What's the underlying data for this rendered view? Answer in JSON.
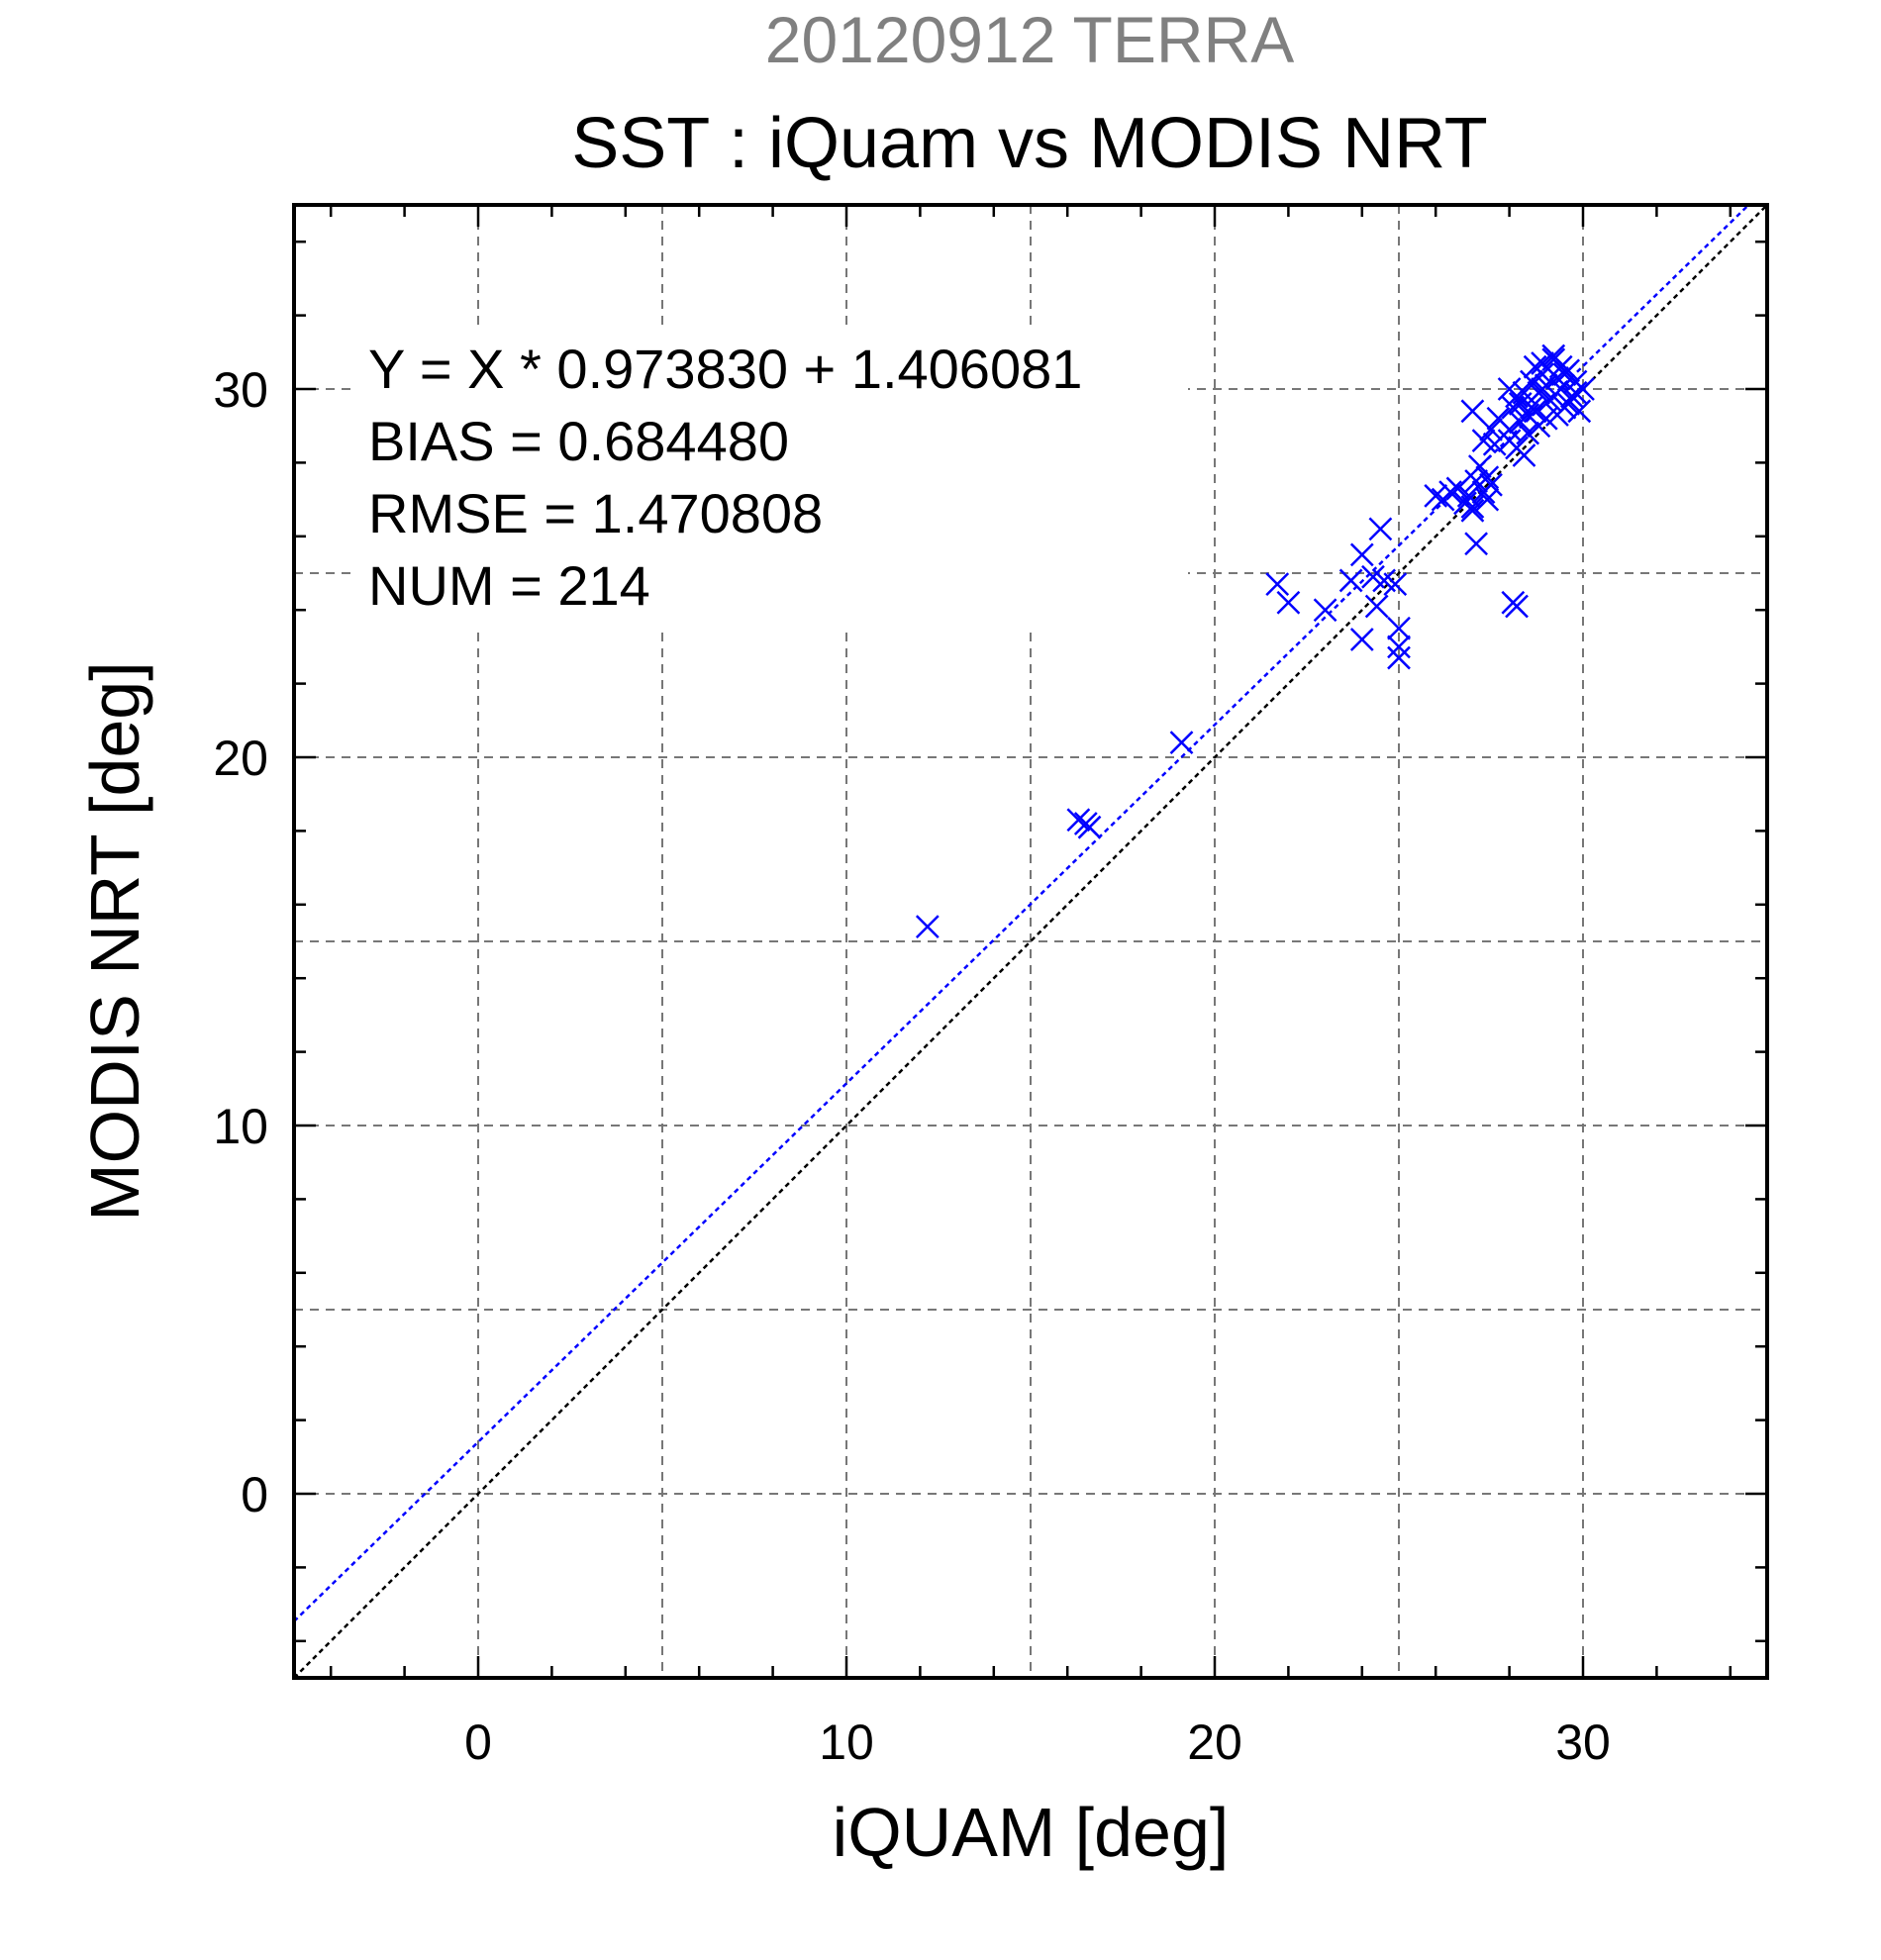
{
  "chart_data": {
    "type": "scatter",
    "title": "20120912 TERRA",
    "subtitle": "SST : iQuam vs MODIS NRT",
    "xlabel": "iQUAM [deg]",
    "ylabel": "MODIS NRT [deg]",
    "xlim": [
      -5,
      35
    ],
    "ylim": [
      -5,
      35
    ],
    "xticks": [
      0,
      10,
      20,
      30
    ],
    "yticks": [
      0,
      10,
      20,
      30
    ],
    "grid": true,
    "stats": [
      "Y = X * 0.973830 + 1.406081",
      "BIAS = 0.684480",
      "RMSE = 1.470808",
      "NUM = 214"
    ],
    "fit_line": {
      "slope": 0.97383,
      "intercept": 1.406081,
      "color": "#0000ff"
    },
    "identity_line": {
      "slope": 1,
      "intercept": 0,
      "color": "#000000"
    },
    "marker": "x",
    "marker_color": "#0000ff",
    "points": [
      [
        12.2,
        15.4
      ],
      [
        16.3,
        18.3
      ],
      [
        16.5,
        18.2
      ],
      [
        16.6,
        18.1
      ],
      [
        19.1,
        20.4
      ],
      [
        21.7,
        24.7
      ],
      [
        22.0,
        24.2
      ],
      [
        23.0,
        24.0
      ],
      [
        23.7,
        24.8
      ],
      [
        24.0,
        23.2
      ],
      [
        24.0,
        25.5
      ],
      [
        24.3,
        24.9
      ],
      [
        24.4,
        24.1
      ],
      [
        24.5,
        26.2
      ],
      [
        24.6,
        24.8
      ],
      [
        24.9,
        24.7
      ],
      [
        25.0,
        23.5
      ],
      [
        25.0,
        23.0
      ],
      [
        25.0,
        22.7
      ],
      [
        26.0,
        27.1
      ],
      [
        26.2,
        27.0
      ],
      [
        26.4,
        27.2
      ],
      [
        26.6,
        27.3
      ],
      [
        26.8,
        26.9
      ],
      [
        26.9,
        27.1
      ],
      [
        27.0,
        26.8
      ],
      [
        27.1,
        27.5
      ],
      [
        27.2,
        27.9
      ],
      [
        27.3,
        27.2
      ],
      [
        27.4,
        27.0
      ],
      [
        27.5,
        27.4
      ],
      [
        27.1,
        25.8
      ],
      [
        27.0,
        26.7
      ],
      [
        27.3,
        28.6
      ],
      [
        27.5,
        28.9
      ],
      [
        27.6,
        28.5
      ],
      [
        27.7,
        29.2
      ],
      [
        27.0,
        29.4
      ],
      [
        27.4,
        27.6
      ],
      [
        28.0,
        30.0
      ],
      [
        28.1,
        29.5
      ],
      [
        28.2,
        29.8
      ],
      [
        28.3,
        29.1
      ],
      [
        28.0,
        28.9
      ],
      [
        28.2,
        28.4
      ],
      [
        28.4,
        28.2
      ],
      [
        28.5,
        29.3
      ],
      [
        28.6,
        30.2
      ],
      [
        28.7,
        30.6
      ],
      [
        28.8,
        29.9
      ],
      [
        28.9,
        30.4
      ],
      [
        29.0,
        30.1
      ],
      [
        29.1,
        29.7
      ],
      [
        29.2,
        30.8
      ],
      [
        29.3,
        30.3
      ],
      [
        29.4,
        30.0
      ],
      [
        29.5,
        29.5
      ],
      [
        29.6,
        30.5
      ],
      [
        29.7,
        29.8
      ],
      [
        29.8,
        30.2
      ],
      [
        29.9,
        29.4
      ],
      [
        30.0,
        30.0
      ],
      [
        29.0,
        29.2
      ],
      [
        28.8,
        29.0
      ],
      [
        28.5,
        28.8
      ],
      [
        28.3,
        29.6
      ],
      [
        28.6,
        29.5
      ],
      [
        28.9,
        30.7
      ],
      [
        29.2,
        30.9
      ],
      [
        29.4,
        30.6
      ],
      [
        29.6,
        29.6
      ],
      [
        29.8,
        29.9
      ],
      [
        28.4,
        29.9
      ],
      [
        28.7,
        29.4
      ],
      [
        28.1,
        24.2
      ],
      [
        28.2,
        24.1
      ],
      [
        29.3,
        29.3
      ],
      [
        29.5,
        30.4
      ],
      [
        28.0,
        28.6
      ],
      [
        28.9,
        30.0
      ]
    ]
  }
}
